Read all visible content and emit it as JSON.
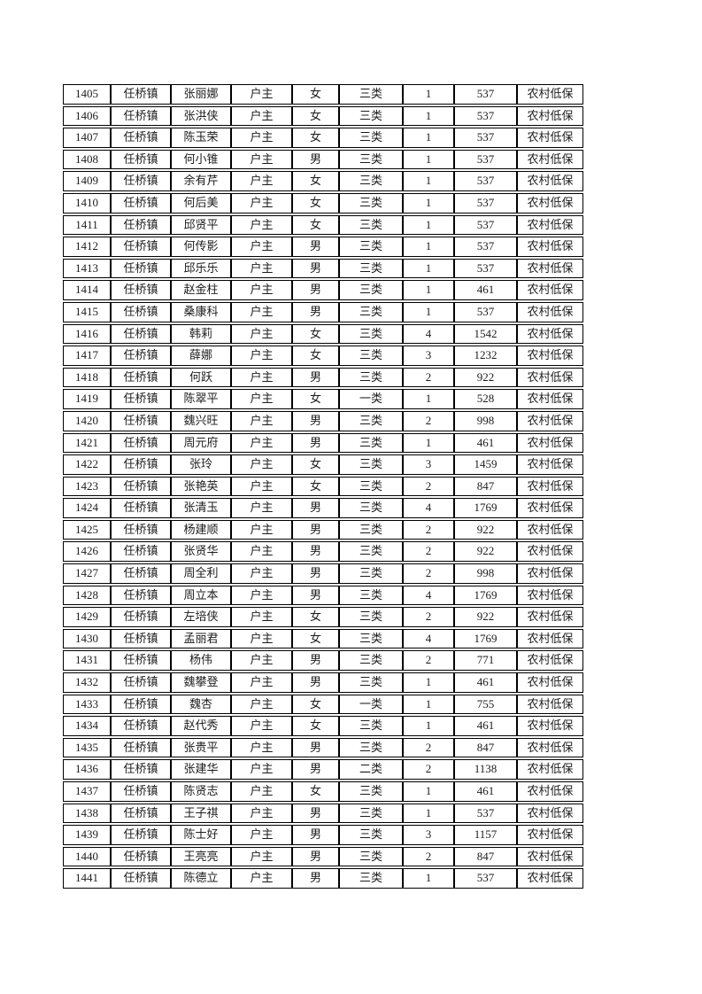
{
  "table": {
    "rows": [
      [
        "1405",
        "任桥镇",
        "张丽娜",
        "户主",
        "女",
        "三类",
        "1",
        "537",
        "农村低保"
      ],
      [
        "1406",
        "任桥镇",
        "张洪侠",
        "户主",
        "女",
        "三类",
        "1",
        "537",
        "农村低保"
      ],
      [
        "1407",
        "任桥镇",
        "陈玉荣",
        "户主",
        "女",
        "三类",
        "1",
        "537",
        "农村低保"
      ],
      [
        "1408",
        "任桥镇",
        "何小锥",
        "户主",
        "男",
        "三类",
        "1",
        "537",
        "农村低保"
      ],
      [
        "1409",
        "任桥镇",
        "余有芹",
        "户主",
        "女",
        "三类",
        "1",
        "537",
        "农村低保"
      ],
      [
        "1410",
        "任桥镇",
        "何后美",
        "户主",
        "女",
        "三类",
        "1",
        "537",
        "农村低保"
      ],
      [
        "1411",
        "任桥镇",
        "邱贤平",
        "户主",
        "女",
        "三类",
        "1",
        "537",
        "农村低保"
      ],
      [
        "1412",
        "任桥镇",
        "何传影",
        "户主",
        "男",
        "三类",
        "1",
        "537",
        "农村低保"
      ],
      [
        "1413",
        "任桥镇",
        "邱乐乐",
        "户主",
        "男",
        "三类",
        "1",
        "537",
        "农村低保"
      ],
      [
        "1414",
        "任桥镇",
        "赵金柱",
        "户主",
        "男",
        "三类",
        "1",
        "461",
        "农村低保"
      ],
      [
        "1415",
        "任桥镇",
        "桑康科",
        "户主",
        "男",
        "三类",
        "1",
        "537",
        "农村低保"
      ],
      [
        "1416",
        "任桥镇",
        "韩莉",
        "户主",
        "女",
        "三类",
        "4",
        "1542",
        "农村低保"
      ],
      [
        "1417",
        "任桥镇",
        "薛娜",
        "户主",
        "女",
        "三类",
        "3",
        "1232",
        "农村低保"
      ],
      [
        "1418",
        "任桥镇",
        "何跃",
        "户主",
        "男",
        "三类",
        "2",
        "922",
        "农村低保"
      ],
      [
        "1419",
        "任桥镇",
        "陈翠平",
        "户主",
        "女",
        "一类",
        "1",
        "528",
        "农村低保"
      ],
      [
        "1420",
        "任桥镇",
        "魏兴旺",
        "户主",
        "男",
        "三类",
        "2",
        "998",
        "农村低保"
      ],
      [
        "1421",
        "任桥镇",
        "周元府",
        "户主",
        "男",
        "三类",
        "1",
        "461",
        "农村低保"
      ],
      [
        "1422",
        "任桥镇",
        "张玲",
        "户主",
        "女",
        "三类",
        "3",
        "1459",
        "农村低保"
      ],
      [
        "1423",
        "任桥镇",
        "张艳英",
        "户主",
        "女",
        "三类",
        "2",
        "847",
        "农村低保"
      ],
      [
        "1424",
        "任桥镇",
        "张清玉",
        "户主",
        "男",
        "三类",
        "4",
        "1769",
        "农村低保"
      ],
      [
        "1425",
        "任桥镇",
        "杨建顺",
        "户主",
        "男",
        "三类",
        "2",
        "922",
        "农村低保"
      ],
      [
        "1426",
        "任桥镇",
        "张贤华",
        "户主",
        "男",
        "三类",
        "2",
        "922",
        "农村低保"
      ],
      [
        "1427",
        "任桥镇",
        "周全利",
        "户主",
        "男",
        "三类",
        "2",
        "998",
        "农村低保"
      ],
      [
        "1428",
        "任桥镇",
        "周立本",
        "户主",
        "男",
        "三类",
        "4",
        "1769",
        "农村低保"
      ],
      [
        "1429",
        "任桥镇",
        "左培侠",
        "户主",
        "女",
        "三类",
        "2",
        "922",
        "农村低保"
      ],
      [
        "1430",
        "任桥镇",
        "孟丽君",
        "户主",
        "女",
        "三类",
        "4",
        "1769",
        "农村低保"
      ],
      [
        "1431",
        "任桥镇",
        "杨伟",
        "户主",
        "男",
        "三类",
        "2",
        "771",
        "农村低保"
      ],
      [
        "1432",
        "任桥镇",
        "魏攀登",
        "户主",
        "男",
        "三类",
        "1",
        "461",
        "农村低保"
      ],
      [
        "1433",
        "任桥镇",
        "魏杏",
        "户主",
        "女",
        "一类",
        "1",
        "755",
        "农村低保"
      ],
      [
        "1434",
        "任桥镇",
        "赵代秀",
        "户主",
        "女",
        "三类",
        "1",
        "461",
        "农村低保"
      ],
      [
        "1435",
        "任桥镇",
        "张贵平",
        "户主",
        "男",
        "三类",
        "2",
        "847",
        "农村低保"
      ],
      [
        "1436",
        "任桥镇",
        "张建华",
        "户主",
        "男",
        "二类",
        "2",
        "1138",
        "农村低保"
      ],
      [
        "1437",
        "任桥镇",
        "陈贤志",
        "户主",
        "女",
        "三类",
        "1",
        "461",
        "农村低保"
      ],
      [
        "1438",
        "任桥镇",
        "王子祺",
        "户主",
        "男",
        "三类",
        "1",
        "537",
        "农村低保"
      ],
      [
        "1439",
        "任桥镇",
        "陈士好",
        "户主",
        "男",
        "三类",
        "3",
        "1157",
        "农村低保"
      ],
      [
        "1440",
        "任桥镇",
        "王亮亮",
        "户主",
        "男",
        "三类",
        "2",
        "847",
        "农村低保"
      ],
      [
        "1441",
        "任桥镇",
        "陈德立",
        "户主",
        "男",
        "三类",
        "1",
        "537",
        "农村低保"
      ]
    ]
  }
}
